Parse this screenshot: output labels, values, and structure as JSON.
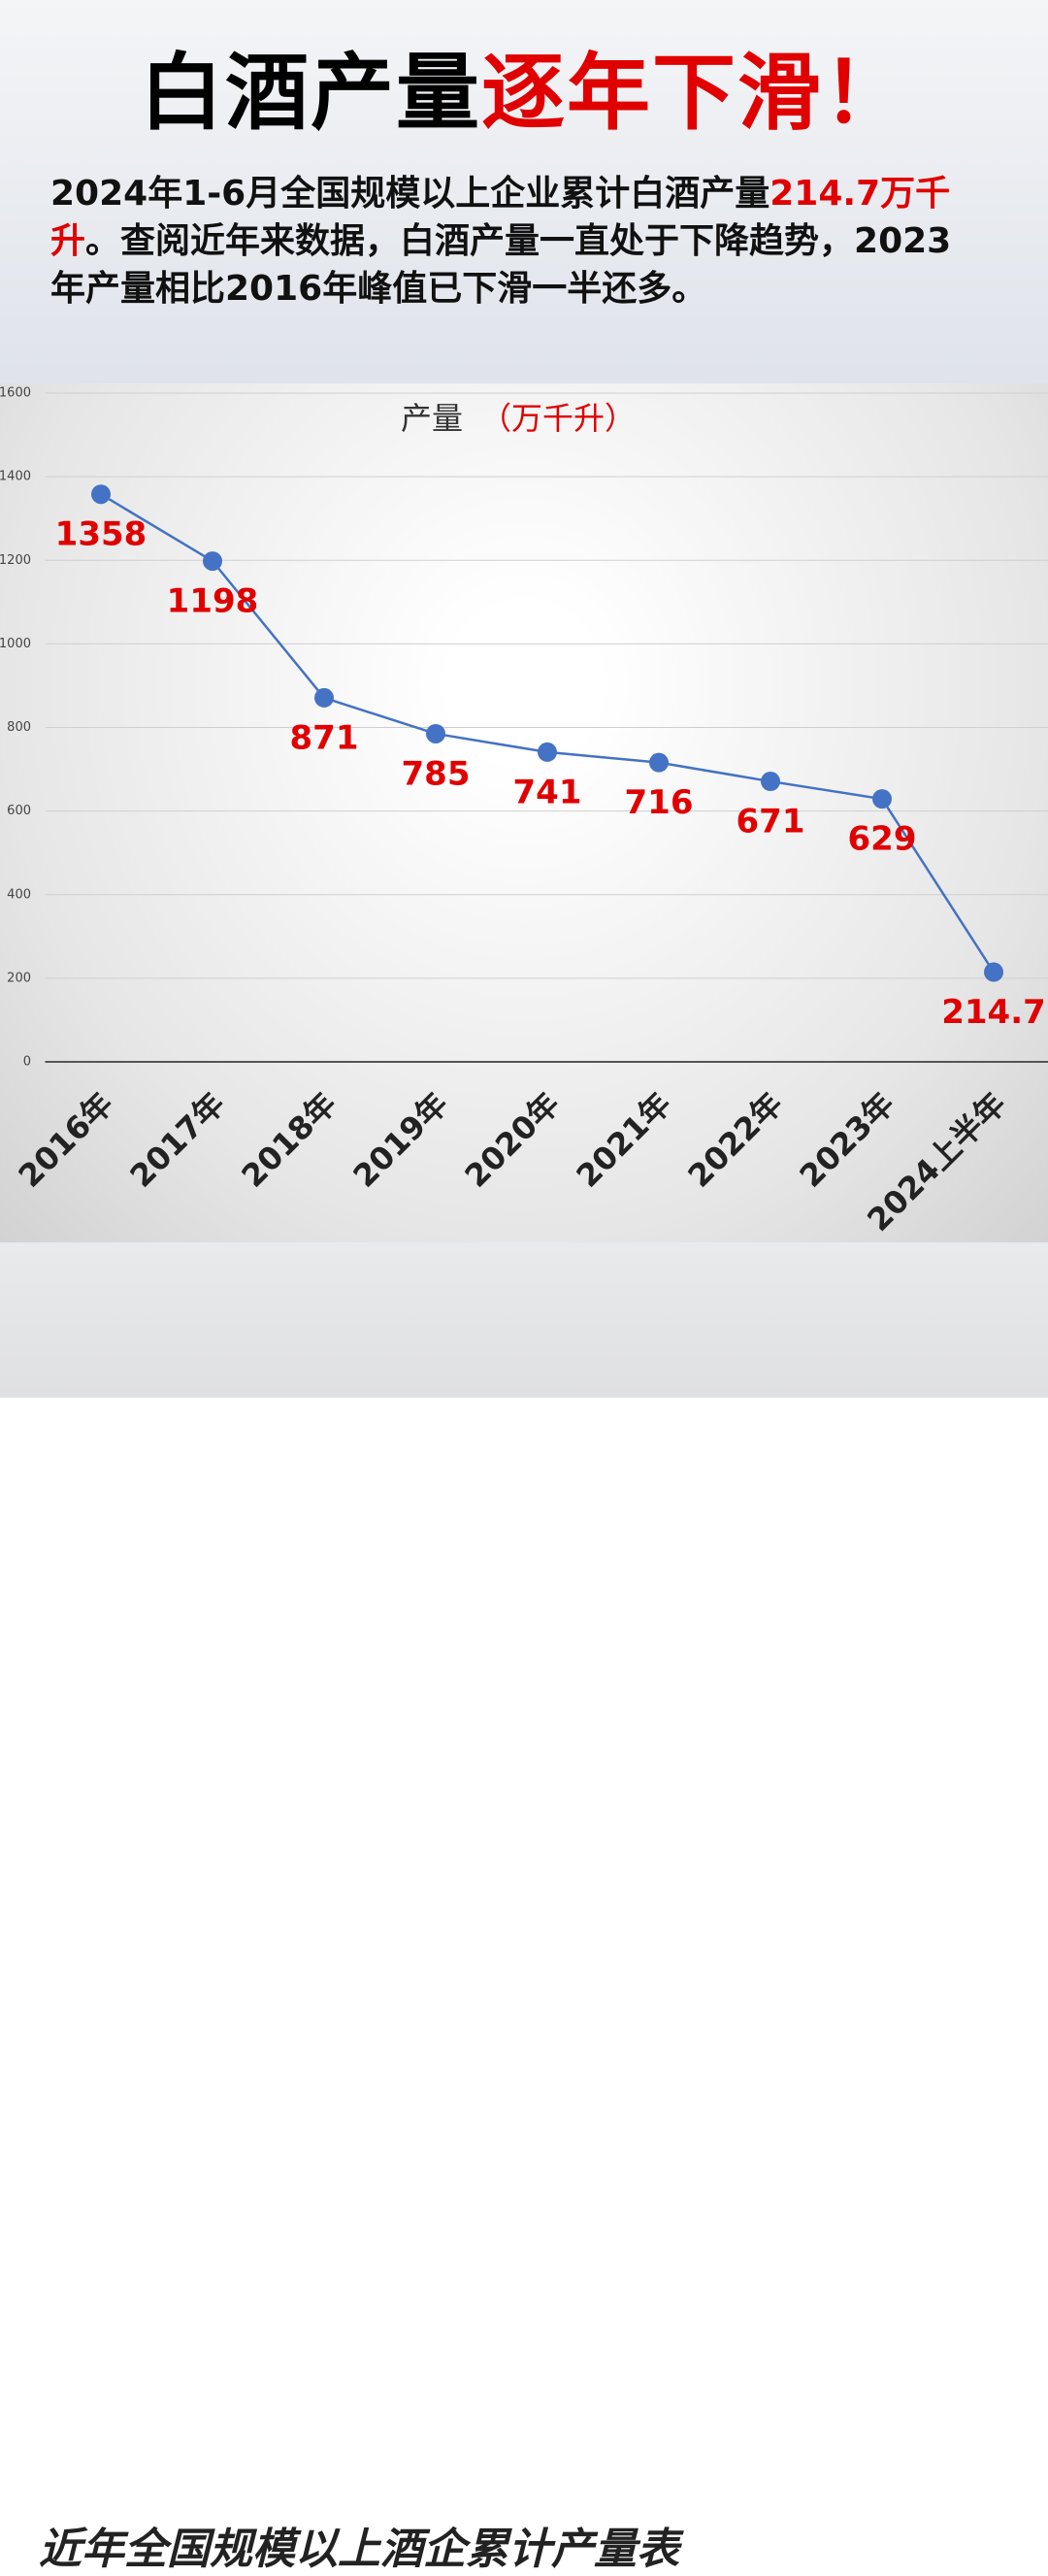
{
  "header": {
    "title": [
      "白酒产量",
      "逐年下滑！"
    ]
  },
  "intro": [
    "2024年1-6月全国规模以上企业累计白酒产量",
    "214.7万千升",
    "。查阅近年来数据，白酒产量一直处于下降趋势，2023年产量相比2016年峰值已下滑一半还多。"
  ],
  "chart_data": {
    "type": "line",
    "title": "产量",
    "unit": "（万千升）",
    "categories": [
      "2016年",
      "2017年",
      "2018年",
      "2019年",
      "2020年",
      "2021年",
      "2022年",
      "2023年",
      "2024上半年"
    ],
    "values": [
      1358,
      1198,
      871,
      785,
      741,
      716,
      671,
      629,
      214.7
    ],
    "color": "#4472c4",
    "label_color": "#e00000",
    "ylim": [
      0,
      1600
    ],
    "yticks": [
      0,
      200,
      400,
      600,
      800,
      1000,
      1200,
      1400,
      1600
    ],
    "grid": true
  },
  "caption": "近年全国规模以上酒企累计产量表"
}
